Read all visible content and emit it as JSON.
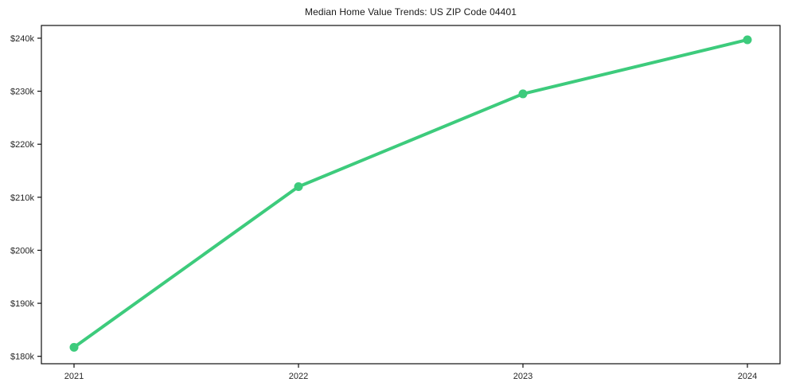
{
  "chart_data": {
    "type": "line",
    "title": "Median Home Value Trends: US ZIP Code 04401",
    "x": [
      "2021",
      "2022",
      "2023",
      "2024"
    ],
    "series": [
      {
        "name": "Median Home Value",
        "values": [
          181700,
          212000,
          229500,
          239700
        ]
      }
    ],
    "xlabel": "",
    "ylabel": "",
    "ylim": [
      178600,
      242400
    ],
    "ytick_values": [
      180000,
      190000,
      200000,
      210000,
      220000,
      230000,
      240000
    ],
    "ytick_labels": [
      "$180k",
      "$190k",
      "$200k",
      "$210k",
      "$220k",
      "$230k",
      "$240k"
    ],
    "grid": false,
    "legend": "none",
    "marker": "circle"
  },
  "colors": {
    "line": "#3dcb7c",
    "marker": "#3dcb7c",
    "axis": "#0f0f0f",
    "text": "#262626",
    "title_text": "#1a1a1a",
    "background": "#ffffff"
  }
}
